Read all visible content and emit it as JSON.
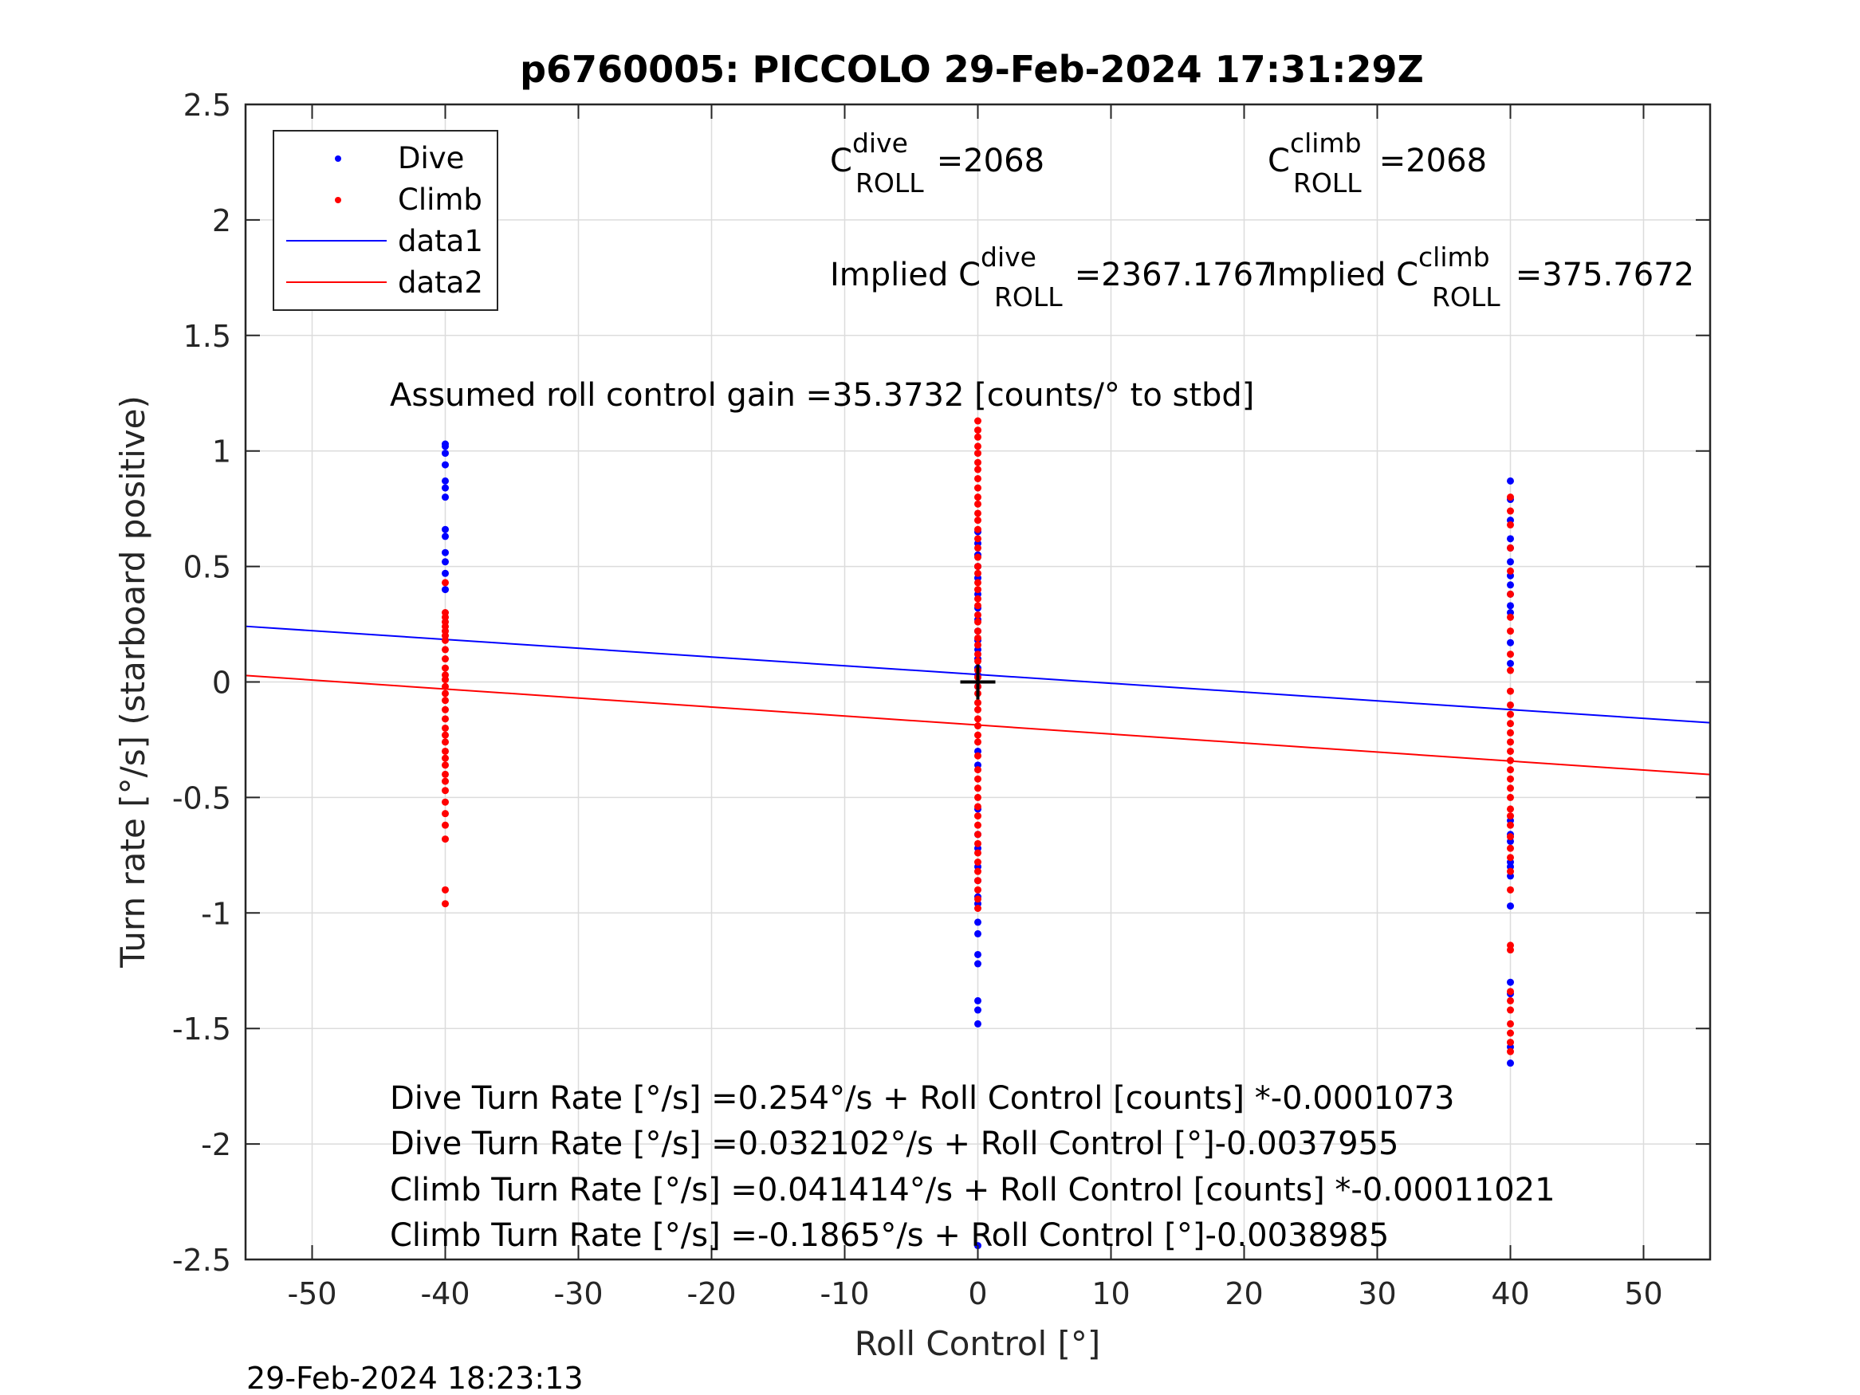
{
  "chart_data": {
    "type": "scatter",
    "title": "p6760005: PICCOLO 29-Feb-2024 17:31:29Z",
    "xlabel": "Roll Control [°]",
    "ylabel": "Turn rate [°/s] (starboard positive)",
    "xlim": [
      -55,
      55
    ],
    "ylim": [
      -2.5,
      2.5
    ],
    "xticks": [
      -50,
      -40,
      -30,
      -20,
      -10,
      0,
      10,
      20,
      30,
      40,
      50
    ],
    "xtick_labels": [
      "-50",
      "-40",
      "-30",
      "-20",
      "-10",
      "0",
      "10",
      "20",
      "30",
      "40",
      "50"
    ],
    "yticks": [
      -2.5,
      -2,
      -1.5,
      -1,
      -0.5,
      0,
      0.5,
      1,
      1.5,
      2,
      2.5
    ],
    "ytick_labels": [
      "-2.5",
      "-2",
      "-1.5",
      "-1",
      "-0.5",
      "0",
      "0.5",
      "1",
      "1.5",
      "2",
      "2.5"
    ],
    "grid": true,
    "legend_position": "top-left",
    "series": [
      {
        "name": "Dive",
        "kind": "points",
        "color": "#0000ff",
        "groups": [
          {
            "x": -40,
            "y": [
              1.03,
              1.02,
              0.99,
              0.94,
              0.87,
              0.84,
              0.8,
              0.66,
              0.63,
              0.56,
              0.52,
              0.47,
              0.4
            ]
          },
          {
            "x": 0,
            "y": [
              0.65,
              0.6,
              0.55,
              0.5,
              0.45,
              0.38,
              0.32,
              0.27,
              0.22,
              0.18,
              0.14,
              0.1,
              0.06,
              0.03,
              -0.02,
              -0.3,
              -0.36,
              -0.55,
              -0.66,
              -0.72,
              -0.8,
              -0.86,
              -0.93,
              -0.96,
              -1.04,
              -1.09,
              -1.18,
              -1.22,
              -1.38,
              -1.42,
              -1.48,
              -2.44
            ]
          },
          {
            "x": 40,
            "y": [
              0.87,
              0.79,
              0.7,
              0.62,
              0.58,
              0.52,
              0.46,
              0.42,
              0.38,
              0.33,
              0.3,
              0.17,
              0.08,
              -0.6,
              -0.66,
              -0.69,
              -0.78,
              -0.8,
              -0.84,
              -0.97,
              -1.3,
              -1.35,
              -1.58,
              -1.65
            ]
          }
        ]
      },
      {
        "name": "Climb",
        "kind": "points",
        "color": "#ff0000",
        "groups": [
          {
            "x": -40,
            "y": [
              0.43,
              0.3,
              0.28,
              0.26,
              0.24,
              0.22,
              0.2,
              0.18,
              0.14,
              0.1,
              0.06,
              0.03,
              0.01,
              -0.02,
              -0.05,
              -0.08,
              -0.12,
              -0.16,
              -0.2,
              -0.23,
              -0.26,
              -0.3,
              -0.33,
              -0.36,
              -0.4,
              -0.43,
              -0.47,
              -0.52,
              -0.57,
              -0.62,
              -0.68,
              -0.9,
              -0.96
            ]
          },
          {
            "x": 0,
            "y": [
              1.13,
              1.09,
              1.06,
              1.02,
              0.99,
              0.95,
              0.92,
              0.88,
              0.84,
              0.8,
              0.77,
              0.73,
              0.7,
              0.66,
              0.62,
              0.58,
              0.54,
              0.5,
              0.47,
              0.43,
              0.4,
              0.36,
              0.33,
              0.29,
              0.26,
              0.22,
              0.19,
              0.16,
              0.12,
              0.09,
              0.05,
              0.02,
              -0.02,
              -0.05,
              -0.09,
              -0.12,
              -0.16,
              -0.19,
              -0.23,
              -0.26,
              -0.32,
              -0.38,
              -0.42,
              -0.46,
              -0.5,
              -0.54,
              -0.58,
              -0.62,
              -0.66,
              -0.7,
              -0.74,
              -0.78,
              -0.82,
              -0.86,
              -0.9,
              -0.94,
              -0.98
            ]
          },
          {
            "x": 40,
            "y": [
              0.8,
              0.74,
              0.68,
              0.58,
              0.48,
              0.38,
              0.28,
              0.22,
              0.12,
              0.05,
              -0.04,
              -0.1,
              -0.14,
              -0.18,
              -0.22,
              -0.26,
              -0.3,
              -0.34,
              -0.38,
              -0.42,
              -0.46,
              -0.5,
              -0.55,
              -0.58,
              -0.62,
              -0.67,
              -0.72,
              -0.76,
              -0.82,
              -0.9,
              -1.14,
              -1.16,
              -1.34,
              -1.38,
              -1.42,
              -1.48,
              -1.52,
              -1.56,
              -1.6
            ]
          }
        ]
      },
      {
        "name": "data1",
        "kind": "line",
        "color": "#0000ff",
        "x": [
          -55,
          55
        ],
        "y": [
          0.2409,
          -0.1766
        ]
      },
      {
        "name": "data2",
        "kind": "line",
        "color": "#ff0000",
        "x": [
          -55,
          55
        ],
        "y": [
          0.0279,
          -0.4009
        ]
      }
    ],
    "marker_cross": {
      "x": 0,
      "y": 0,
      "color": "#000000"
    }
  },
  "annotations": {
    "c_dive_main": "C",
    "c_dive_sup": "dive",
    "c_dive_sub": "ROLL",
    "c_dive_value": " =2068",
    "c_climb_main": "C",
    "c_climb_sup": "climb",
    "c_climb_sub": "ROLL",
    "c_climb_value": " =2068",
    "implied_dive_main": "Implied C",
    "implied_dive_sup": "dive",
    "implied_dive_sub": "ROLL",
    "implied_dive_value": " =2367.1767",
    "implied_climb_main": "Implied C",
    "implied_climb_sup": "climb",
    "implied_climb_sub": "ROLL",
    "implied_climb_value": " =375.7672",
    "assumed_gain": "Assumed roll control gain =35.3732 [counts/° to stbd]",
    "eq_dive_counts": "Dive Turn Rate [°/s] =0.254°/s + Roll Control [counts] *-0.0001073",
    "eq_dive_deg": "Dive Turn Rate [°/s] =0.032102°/s + Roll Control [°]-0.0037955",
    "eq_climb_counts": "Climb Turn Rate [°/s] =0.041414°/s + Roll Control [counts] *-0.00011021",
    "eq_climb_deg": "Climb Turn Rate [°/s] =-0.1865°/s + Roll Control [°]-0.0038985"
  },
  "timestamp": "29-Feb-2024 18:23:13"
}
